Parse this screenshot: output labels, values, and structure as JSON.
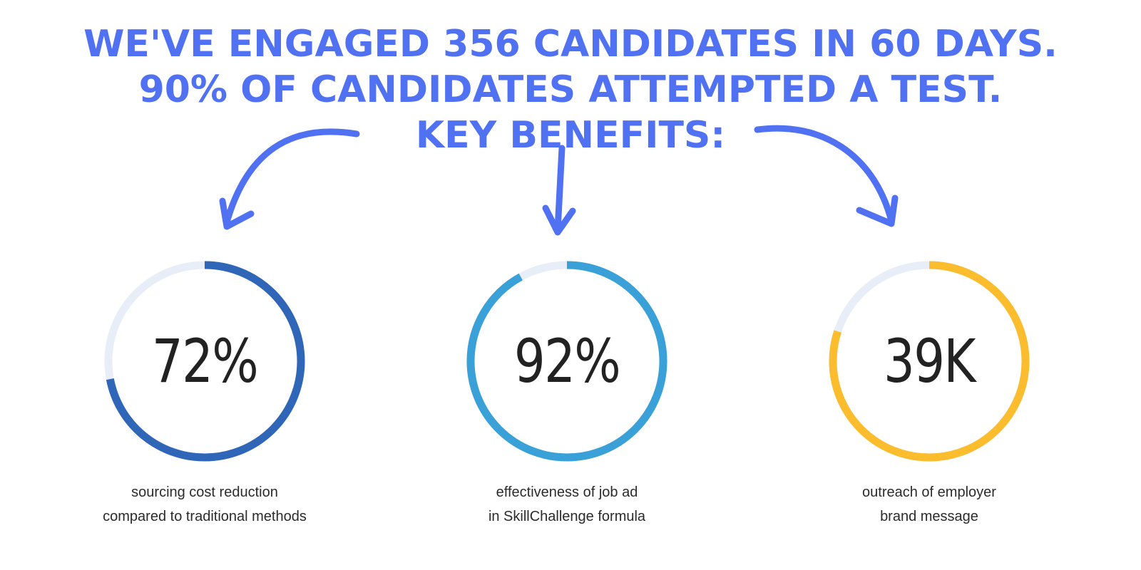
{
  "headline": {
    "line1": "WE'VE ENGAGED 356 CANDIDATES IN 60 DAYS.",
    "line2": "90% OF CANDIDATES ATTEMPTED A TEST.",
    "line3": "KEY BENEFITS:",
    "color": "#5072f2"
  },
  "stats": [
    {
      "value": "72%",
      "fraction": 0.72,
      "color": "#2f66b8",
      "caption_line1": "sourcing cost reduction",
      "caption_line2": "compared to traditional methods"
    },
    {
      "value": "92%",
      "fraction": 0.92,
      "color": "#3aa0d8",
      "caption_line1": "effectiveness of job ad",
      "caption_line2": "in SkillChallenge formula"
    },
    {
      "value": "39K",
      "fraction": 0.8,
      "color": "#fbbd2e",
      "caption_line1": "outreach of employer",
      "caption_line2": "brand message"
    }
  ],
  "ring_track_color": "#e8eef8",
  "icons": [
    "curved-arrow-left-icon",
    "arrow-down-icon",
    "curved-arrow-right-icon"
  ]
}
